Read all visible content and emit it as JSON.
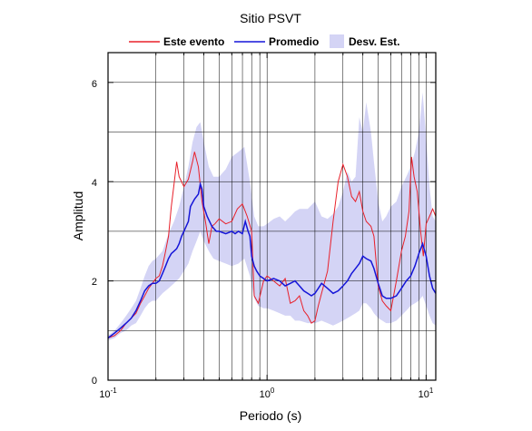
{
  "chart_data": {
    "type": "line",
    "title": "Sitio PSVT",
    "xlabel": "Periodo (s)",
    "ylabel": "Amplitud",
    "xscale": "log",
    "xlim": [
      0.1,
      11.5
    ],
    "ylim": [
      0,
      6.6
    ],
    "grid": true,
    "legend_position": "top",
    "x_tick_labels": [
      {
        "value": 0.1,
        "base": "10",
        "exp": "-1"
      },
      {
        "value": 1,
        "base": "10",
        "exp": "0"
      },
      {
        "value": 10,
        "base": "10",
        "exp": "1"
      }
    ],
    "y_ticks": [
      0,
      2,
      4,
      6
    ],
    "y_tick_labels": [
      "0",
      "2",
      "4",
      "6"
    ],
    "series": [
      {
        "name": "Este evento",
        "color": "#e8202a",
        "points": [
          [
            0.1,
            0.85
          ],
          [
            0.11,
            0.9
          ],
          [
            0.12,
            1.0
          ],
          [
            0.13,
            1.15
          ],
          [
            0.14,
            1.25
          ],
          [
            0.15,
            1.35
          ],
          [
            0.16,
            1.55
          ],
          [
            0.17,
            1.7
          ],
          [
            0.18,
            1.85
          ],
          [
            0.19,
            1.95
          ],
          [
            0.2,
            2.05
          ],
          [
            0.21,
            2.1
          ],
          [
            0.22,
            2.3
          ],
          [
            0.23,
            2.6
          ],
          [
            0.24,
            2.9
          ],
          [
            0.25,
            3.5
          ],
          [
            0.26,
            3.95
          ],
          [
            0.27,
            4.4
          ],
          [
            0.28,
            4.1
          ],
          [
            0.3,
            3.9
          ],
          [
            0.32,
            4.05
          ],
          [
            0.34,
            4.4
          ],
          [
            0.35,
            4.6
          ],
          [
            0.37,
            4.3
          ],
          [
            0.39,
            3.6
          ],
          [
            0.41,
            3.2
          ],
          [
            0.43,
            2.75
          ],
          [
            0.45,
            3.1
          ],
          [
            0.47,
            3.15
          ],
          [
            0.5,
            3.25
          ],
          [
            0.55,
            3.15
          ],
          [
            0.6,
            3.2
          ],
          [
            0.65,
            3.45
          ],
          [
            0.7,
            3.55
          ],
          [
            0.75,
            3.3
          ],
          [
            0.8,
            3.0
          ],
          [
            0.83,
            1.7
          ],
          [
            0.88,
            1.55
          ],
          [
            0.95,
            2.0
          ],
          [
            1.0,
            2.1
          ],
          [
            1.1,
            2.0
          ],
          [
            1.2,
            1.9
          ],
          [
            1.3,
            2.05
          ],
          [
            1.4,
            1.55
          ],
          [
            1.5,
            1.6
          ],
          [
            1.6,
            1.7
          ],
          [
            1.7,
            1.4
          ],
          [
            1.8,
            1.3
          ],
          [
            1.9,
            1.15
          ],
          [
            2.0,
            1.2
          ],
          [
            2.1,
            1.5
          ],
          [
            2.2,
            1.75
          ],
          [
            2.4,
            2.2
          ],
          [
            2.6,
            3.2
          ],
          [
            2.8,
            4.0
          ],
          [
            3.0,
            4.35
          ],
          [
            3.2,
            4.1
          ],
          [
            3.4,
            3.7
          ],
          [
            3.6,
            3.6
          ],
          [
            3.8,
            3.8
          ],
          [
            4.0,
            3.4
          ],
          [
            4.2,
            3.2
          ],
          [
            4.5,
            3.1
          ],
          [
            4.7,
            2.9
          ],
          [
            5.0,
            1.9
          ],
          [
            5.3,
            1.6
          ],
          [
            5.6,
            1.5
          ],
          [
            6.0,
            1.4
          ],
          [
            6.5,
            2.0
          ],
          [
            7.0,
            2.6
          ],
          [
            7.4,
            2.9
          ],
          [
            7.8,
            3.4
          ],
          [
            8.1,
            4.5
          ],
          [
            8.4,
            4.1
          ],
          [
            8.8,
            3.8
          ],
          [
            9.2,
            3.05
          ],
          [
            9.6,
            2.5
          ],
          [
            10.0,
            3.15
          ],
          [
            10.5,
            3.3
          ],
          [
            11.0,
            3.45
          ],
          [
            11.5,
            3.3
          ]
        ]
      },
      {
        "name": "Promedio",
        "color": "#1515d8",
        "points": [
          [
            0.1,
            0.85
          ],
          [
            0.11,
            0.95
          ],
          [
            0.12,
            1.05
          ],
          [
            0.13,
            1.15
          ],
          [
            0.14,
            1.25
          ],
          [
            0.15,
            1.4
          ],
          [
            0.16,
            1.6
          ],
          [
            0.17,
            1.8
          ],
          [
            0.18,
            1.9
          ],
          [
            0.19,
            1.95
          ],
          [
            0.2,
            1.95
          ],
          [
            0.21,
            2.0
          ],
          [
            0.22,
            2.15
          ],
          [
            0.23,
            2.3
          ],
          [
            0.24,
            2.45
          ],
          [
            0.25,
            2.55
          ],
          [
            0.26,
            2.6
          ],
          [
            0.27,
            2.65
          ],
          [
            0.28,
            2.75
          ],
          [
            0.29,
            2.9
          ],
          [
            0.3,
            3.0
          ],
          [
            0.32,
            3.2
          ],
          [
            0.33,
            3.5
          ],
          [
            0.35,
            3.65
          ],
          [
            0.37,
            3.75
          ],
          [
            0.38,
            3.95
          ],
          [
            0.39,
            3.85
          ],
          [
            0.4,
            3.5
          ],
          [
            0.42,
            3.3
          ],
          [
            0.45,
            3.1
          ],
          [
            0.48,
            3.0
          ],
          [
            0.5,
            3.0
          ],
          [
            0.55,
            2.95
          ],
          [
            0.6,
            3.0
          ],
          [
            0.63,
            2.95
          ],
          [
            0.66,
            3.0
          ],
          [
            0.7,
            2.95
          ],
          [
            0.73,
            3.2
          ],
          [
            0.76,
            3.0
          ],
          [
            0.78,
            2.9
          ],
          [
            0.8,
            2.5
          ],
          [
            0.83,
            2.3
          ],
          [
            0.86,
            2.2
          ],
          [
            0.9,
            2.1
          ],
          [
            0.95,
            2.05
          ],
          [
            1.0,
            2.0
          ],
          [
            1.1,
            2.05
          ],
          [
            1.2,
            2.0
          ],
          [
            1.3,
            1.9
          ],
          [
            1.4,
            1.95
          ],
          [
            1.5,
            2.0
          ],
          [
            1.6,
            1.9
          ],
          [
            1.7,
            1.8
          ],
          [
            1.8,
            1.75
          ],
          [
            1.9,
            1.7
          ],
          [
            2.0,
            1.75
          ],
          [
            2.1,
            1.85
          ],
          [
            2.2,
            1.95
          ],
          [
            2.4,
            1.85
          ],
          [
            2.6,
            1.75
          ],
          [
            2.8,
            1.8
          ],
          [
            3.0,
            1.9
          ],
          [
            3.2,
            2.0
          ],
          [
            3.4,
            2.15
          ],
          [
            3.6,
            2.25
          ],
          [
            3.8,
            2.35
          ],
          [
            4.0,
            2.5
          ],
          [
            4.2,
            2.45
          ],
          [
            4.5,
            2.4
          ],
          [
            4.7,
            2.25
          ],
          [
            5.0,
            1.95
          ],
          [
            5.3,
            1.7
          ],
          [
            5.6,
            1.65
          ],
          [
            6.0,
            1.65
          ],
          [
            6.5,
            1.7
          ],
          [
            7.0,
            1.85
          ],
          [
            7.5,
            2.0
          ],
          [
            8.0,
            2.1
          ],
          [
            8.5,
            2.3
          ],
          [
            9.0,
            2.55
          ],
          [
            9.5,
            2.75
          ],
          [
            10.0,
            2.5
          ],
          [
            10.5,
            2.1
          ],
          [
            11.0,
            1.85
          ],
          [
            11.5,
            1.75
          ]
        ]
      }
    ],
    "band": {
      "name": "Desv. Est.",
      "color": "#d4d4f5",
      "points": [
        [
          0.1,
          0.8,
          0.9
        ],
        [
          0.11,
          0.85,
          1.0
        ],
        [
          0.12,
          0.95,
          1.15
        ],
        [
          0.13,
          1.0,
          1.3
        ],
        [
          0.14,
          1.1,
          1.45
        ],
        [
          0.15,
          1.15,
          1.6
        ],
        [
          0.16,
          1.3,
          1.85
        ],
        [
          0.17,
          1.45,
          2.1
        ],
        [
          0.18,
          1.55,
          2.3
        ],
        [
          0.19,
          1.6,
          2.4
        ],
        [
          0.2,
          1.6,
          2.45
        ],
        [
          0.22,
          1.75,
          2.6
        ],
        [
          0.24,
          1.85,
          2.95
        ],
        [
          0.26,
          1.95,
          3.2
        ],
        [
          0.28,
          2.05,
          3.5
        ],
        [
          0.3,
          2.2,
          3.9
        ],
        [
          0.32,
          2.35,
          4.3
        ],
        [
          0.34,
          2.6,
          4.8
        ],
        [
          0.36,
          2.8,
          5.1
        ],
        [
          0.38,
          3.0,
          5.2
        ],
        [
          0.4,
          2.8,
          4.8
        ],
        [
          0.43,
          2.6,
          4.3
        ],
        [
          0.46,
          2.45,
          4.1
        ],
        [
          0.5,
          2.4,
          4.1
        ],
        [
          0.55,
          2.35,
          4.25
        ],
        [
          0.6,
          2.3,
          4.5
        ],
        [
          0.66,
          2.35,
          4.6
        ],
        [
          0.72,
          2.45,
          4.7
        ],
        [
          0.78,
          2.1,
          4.0
        ],
        [
          0.83,
          1.65,
          3.3
        ],
        [
          0.88,
          1.5,
          3.1
        ],
        [
          0.95,
          1.45,
          3.1
        ],
        [
          1.0,
          1.45,
          3.15
        ],
        [
          1.1,
          1.4,
          3.25
        ],
        [
          1.2,
          1.35,
          3.3
        ],
        [
          1.3,
          1.3,
          3.2
        ],
        [
          1.4,
          1.3,
          3.3
        ],
        [
          1.5,
          1.2,
          3.4
        ],
        [
          1.6,
          1.2,
          3.45
        ],
        [
          1.8,
          1.15,
          3.45
        ],
        [
          2.0,
          1.15,
          3.6
        ],
        [
          2.2,
          1.2,
          3.3
        ],
        [
          2.4,
          1.15,
          3.25
        ],
        [
          2.6,
          1.1,
          3.35
        ],
        [
          2.8,
          1.15,
          3.5
        ],
        [
          3.0,
          1.2,
          3.8
        ],
        [
          3.2,
          1.25,
          4.2
        ],
        [
          3.4,
          1.3,
          4.0
        ],
        [
          3.6,
          1.35,
          4.1
        ],
        [
          3.8,
          1.4,
          5.3
        ],
        [
          4.0,
          1.55,
          5.0
        ],
        [
          4.2,
          1.55,
          5.6
        ],
        [
          4.5,
          1.45,
          5.0
        ],
        [
          4.7,
          1.35,
          4.4
        ],
        [
          5.0,
          1.25,
          3.6
        ],
        [
          5.3,
          1.2,
          3.2
        ],
        [
          5.6,
          1.15,
          3.3
        ],
        [
          6.0,
          1.15,
          3.5
        ],
        [
          6.5,
          1.2,
          3.6
        ],
        [
          7.0,
          1.3,
          3.9
        ],
        [
          7.5,
          1.4,
          4.1
        ],
        [
          8.0,
          1.5,
          4.3
        ],
        [
          8.5,
          1.55,
          4.6
        ],
        [
          9.0,
          1.6,
          5.0
        ],
        [
          9.5,
          1.7,
          5.8
        ],
        [
          10.0,
          1.5,
          4.9
        ],
        [
          10.5,
          1.3,
          3.9
        ],
        [
          11.0,
          1.15,
          3.3
        ],
        [
          11.5,
          1.1,
          3.2
        ]
      ]
    }
  }
}
